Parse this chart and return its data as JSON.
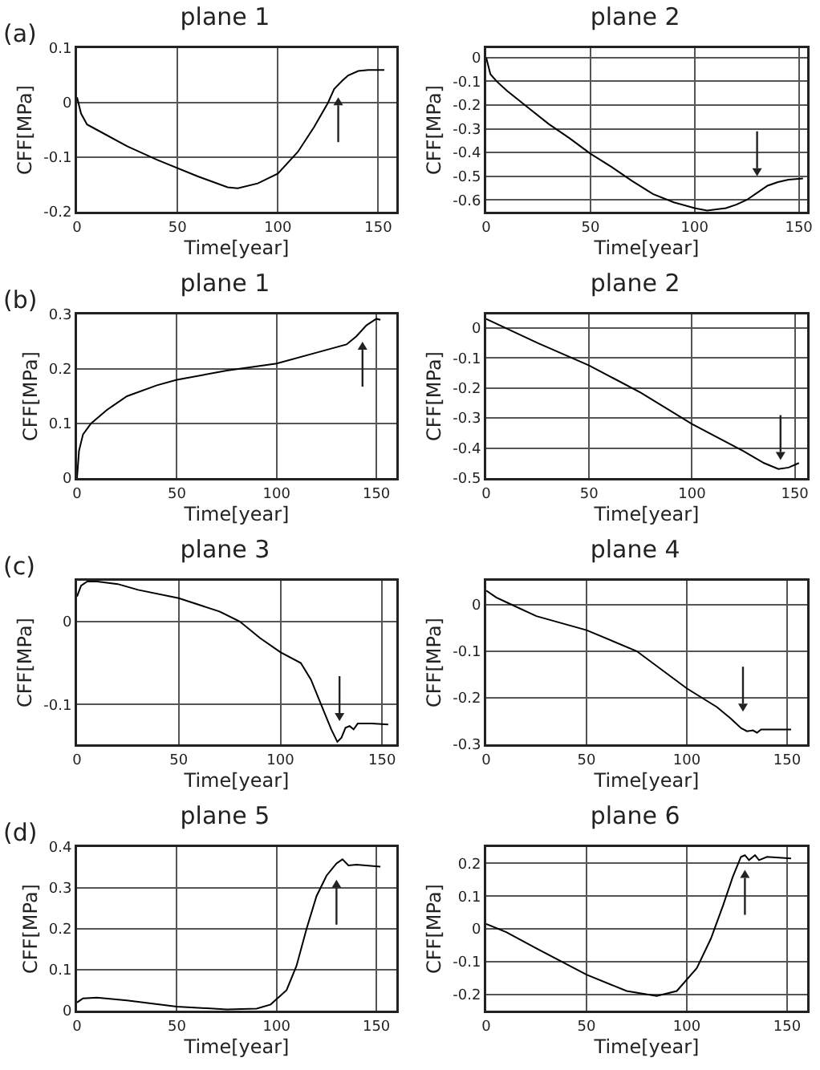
{
  "chart_data": [
    {
      "type": "line",
      "title": "plane 1",
      "xlabel": "Time[year]",
      "ylabel": "CFF[MPa]",
      "annotations": [
        "(a)"
      ],
      "xlim": [
        0,
        159
      ],
      "xticks": [
        0,
        50,
        100,
        150
      ],
      "ylim": [
        -0.2,
        0.1
      ],
      "yticks": [
        -0.2,
        -0.1,
        0,
        0.1
      ],
      "grid": true,
      "marker": "none",
      "line_style": "solid",
      "series": [
        {
          "color": "#000000",
          "x": [
            0,
            2,
            5,
            10,
            25,
            40,
            60,
            75,
            80,
            90,
            100,
            110,
            118,
            125,
            128,
            132,
            135,
            140,
            145,
            153
          ],
          "values": [
            0.01,
            -0.02,
            -0.04,
            -0.05,
            -0.08,
            -0.105,
            -0.135,
            -0.155,
            -0.157,
            -0.148,
            -0.13,
            -0.09,
            -0.045,
            0,
            0.025,
            0.04,
            0.05,
            0.058,
            0.06,
            0.06
          ]
        }
      ]
    },
    {
      "type": "line",
      "title": "plane 2",
      "xlabel": "Time[year]",
      "ylabel": "CFF[MPa]",
      "xlim": [
        0,
        154
      ],
      "xticks": [
        0,
        50,
        100,
        150
      ],
      "ylim": [
        -0.65,
        0.04
      ],
      "yticks": [
        -0.6,
        -0.5,
        -0.4,
        -0.3,
        -0.2,
        -0.1,
        0
      ],
      "grid": true,
      "marker": "none",
      "line_style": "solid",
      "series": [
        {
          "color": "#000000",
          "x": [
            0,
            2,
            5,
            10,
            20,
            30,
            40,
            50,
            60,
            70,
            80,
            90,
            100,
            106,
            115,
            120,
            125,
            130,
            135,
            140,
            145,
            152
          ],
          "values": [
            0,
            -0.07,
            -0.1,
            -0.14,
            -0.21,
            -0.28,
            -0.34,
            -0.405,
            -0.46,
            -0.52,
            -0.575,
            -0.61,
            -0.635,
            -0.645,
            -0.635,
            -0.62,
            -0.6,
            -0.57,
            -0.54,
            -0.525,
            -0.515,
            -0.51
          ]
        }
      ]
    },
    {
      "type": "line",
      "title": "plane 1",
      "xlabel": "Time[year]",
      "ylabel": "CFF[MPa]",
      "annotations": [
        "(b)"
      ],
      "xlim": [
        0,
        160
      ],
      "xticks": [
        0,
        50,
        100,
        150
      ],
      "ylim": [
        0,
        0.3
      ],
      "yticks": [
        0,
        0.1,
        0.2,
        0.3
      ],
      "grid": true,
      "marker": "none",
      "line_style": "solid",
      "series": [
        {
          "color": "#000000",
          "x": [
            0,
            1,
            3,
            7,
            15,
            25,
            40,
            50,
            75,
            100,
            120,
            135,
            140,
            145,
            150,
            152
          ],
          "values": [
            0,
            0.05,
            0.08,
            0.1,
            0.125,
            0.15,
            0.17,
            0.18,
            0.197,
            0.21,
            0.23,
            0.245,
            0.26,
            0.28,
            0.292,
            0.29
          ]
        }
      ]
    },
    {
      "type": "line",
      "title": "plane 2",
      "xlabel": "Time[year]",
      "ylabel": "CFF[MPa]",
      "xlim": [
        0,
        156
      ],
      "xticks": [
        0,
        50,
        100,
        150
      ],
      "ylim": [
        -0.5,
        0.045
      ],
      "yticks": [
        -0.5,
        -0.4,
        -0.3,
        -0.2,
        -0.1,
        0
      ],
      "grid": true,
      "marker": "none",
      "line_style": "solid",
      "series": [
        {
          "color": "#000000",
          "x": [
            0,
            25,
            50,
            75,
            100,
            125,
            135,
            142,
            147,
            152
          ],
          "values": [
            0.03,
            -0.05,
            -0.125,
            -0.215,
            -0.32,
            -0.41,
            -0.45,
            -0.47,
            -0.465,
            -0.45
          ]
        }
      ]
    },
    {
      "type": "line",
      "title": "plane 3",
      "xlabel": "Time[year]",
      "ylabel": "CFF[MPa]",
      "annotations": [
        "(c)"
      ],
      "xlim": [
        0,
        157
      ],
      "xticks": [
        0,
        50,
        100,
        150
      ],
      "ylim": [
        -0.148,
        0.049
      ],
      "yticks": [
        -0.1,
        0
      ],
      "grid": true,
      "marker": "none",
      "line_style": "solid",
      "series": [
        {
          "color": "#000000",
          "x": [
            0,
            2,
            5,
            10,
            20,
            30,
            50,
            70,
            80,
            90,
            100,
            110,
            115,
            120,
            125,
            128,
            130,
            132,
            134,
            136,
            138,
            145,
            153
          ],
          "values": [
            0.03,
            0.043,
            0.048,
            0.048,
            0.045,
            0.038,
            0.028,
            0.012,
            0,
            -0.02,
            -0.037,
            -0.05,
            -0.07,
            -0.1,
            -0.13,
            -0.145,
            -0.14,
            -0.128,
            -0.126,
            -0.13,
            -0.123,
            -0.123,
            -0.124
          ]
        }
      ]
    },
    {
      "type": "line",
      "title": "plane 4",
      "xlabel": "Time[year]",
      "ylabel": "CFF[MPa]",
      "xlim": [
        0,
        160
      ],
      "xticks": [
        0,
        50,
        100,
        150
      ],
      "ylim": [
        -0.3,
        0.051
      ],
      "yticks": [
        -0.3,
        -0.2,
        -0.1,
        0
      ],
      "grid": true,
      "marker": "none",
      "line_style": "solid",
      "series": [
        {
          "color": "#000000",
          "x": [
            0,
            5,
            10,
            25,
            50,
            75,
            100,
            115,
            122,
            127,
            130,
            133,
            135,
            137,
            152
          ],
          "values": [
            0.03,
            0.015,
            0.005,
            -0.025,
            -0.055,
            -0.1,
            -0.18,
            -0.22,
            -0.245,
            -0.265,
            -0.272,
            -0.27,
            -0.275,
            -0.268,
            -0.268
          ]
        }
      ]
    },
    {
      "type": "line",
      "title": "plane 5",
      "xlabel": "Time[year]",
      "ylabel": "CFF[MPa]",
      "annotations": [
        "(d)"
      ],
      "xlim": [
        0,
        160
      ],
      "xticks": [
        0,
        50,
        100,
        150
      ],
      "ylim": [
        0,
        0.4
      ],
      "yticks": [
        0,
        0.1,
        0.2,
        0.3,
        0.4
      ],
      "grid": true,
      "marker": "none",
      "line_style": "solid",
      "series": [
        {
          "color": "#000000",
          "x": [
            0,
            3,
            10,
            25,
            50,
            75,
            90,
            97,
            105,
            110,
            115,
            120,
            125,
            130,
            133,
            136,
            140,
            152
          ],
          "values": [
            0.02,
            0.03,
            0.032,
            0.025,
            0.01,
            0.003,
            0.005,
            0.015,
            0.05,
            0.11,
            0.2,
            0.28,
            0.33,
            0.36,
            0.37,
            0.355,
            0.357,
            0.352
          ]
        }
      ]
    },
    {
      "type": "line",
      "title": "plane 6",
      "xlabel": "Time[year]",
      "ylabel": "CFF[MPa]",
      "xlim": [
        0,
        160
      ],
      "xticks": [
        0,
        50,
        100,
        150
      ],
      "ylim": [
        -0.25,
        0.25
      ],
      "yticks": [
        -0.2,
        -0.1,
        0,
        0.1,
        0.2
      ],
      "grid": true,
      "marker": "none",
      "line_style": "solid",
      "series": [
        {
          "color": "#000000",
          "x": [
            0,
            10,
            25,
            50,
            70,
            85,
            95,
            105,
            112,
            118,
            123,
            127,
            129,
            131,
            134,
            136,
            140,
            152
          ],
          "values": [
            0.015,
            -0.01,
            -0.06,
            -0.14,
            -0.19,
            -0.205,
            -0.19,
            -0.12,
            -0.03,
            0.07,
            0.16,
            0.22,
            0.225,
            0.21,
            0.225,
            0.21,
            0.22,
            0.215
          ]
        }
      ]
    }
  ]
}
